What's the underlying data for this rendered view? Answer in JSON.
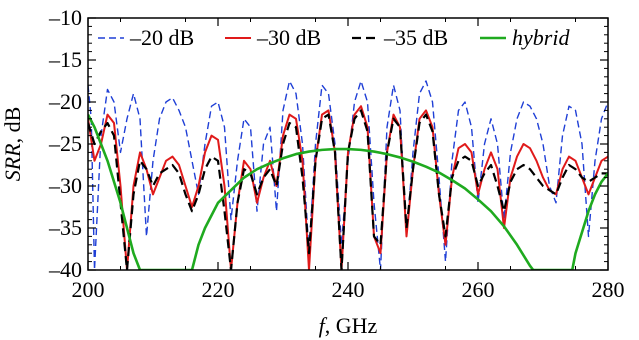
{
  "chart_data": {
    "type": "line",
    "title": "",
    "xlabel": {
      "var": "f",
      "unit": ", GHz"
    },
    "ylabel": {
      "var": "SRR",
      "unit": ", dB"
    },
    "xlim": [
      200,
      280
    ],
    "ylim": [
      -40,
      -10
    ],
    "x_ticks": [
      200,
      220,
      240,
      260,
      280
    ],
    "y_ticks": [
      -10,
      -15,
      -20,
      -25,
      -30,
      -35,
      -40
    ],
    "x_tick_labels": [
      "200",
      "220",
      "240",
      "260",
      "280"
    ],
    "y_tick_labels": [
      "–10",
      "–15",
      "–20",
      "–25",
      "–30",
      "–35",
      "–40"
    ],
    "legend_position": "top",
    "series": [
      {
        "name": "–20 dB",
        "color": "#1f3fd6",
        "style": "dashed",
        "italic": false,
        "points": [
          [
            200,
            -18
          ],
          [
            200.5,
            -22
          ],
          [
            201,
            -40
          ],
          [
            201.5,
            -32
          ],
          [
            202,
            -24
          ],
          [
            203,
            -18.5
          ],
          [
            204,
            -20
          ],
          [
            205,
            -26
          ],
          [
            206,
            -22
          ],
          [
            207,
            -19
          ],
          [
            208,
            -22
          ],
          [
            209,
            -36
          ],
          [
            210,
            -27
          ],
          [
            211,
            -22
          ],
          [
            212,
            -20
          ],
          [
            213,
            -19.5
          ],
          [
            214,
            -21
          ],
          [
            215,
            -23
          ],
          [
            216,
            -27
          ],
          [
            217,
            -31
          ],
          [
            218,
            -25
          ],
          [
            219,
            -20.5
          ],
          [
            220,
            -20
          ],
          [
            221,
            -23
          ],
          [
            222,
            -34
          ],
          [
            223,
            -27
          ],
          [
            224,
            -22
          ],
          [
            225,
            -23
          ],
          [
            226,
            -33
          ],
          [
            227,
            -25
          ],
          [
            228,
            -23
          ],
          [
            229,
            -33
          ],
          [
            230,
            -21
          ],
          [
            231,
            -17.5
          ],
          [
            232,
            -19
          ],
          [
            233,
            -25
          ],
          [
            234,
            -38
          ],
          [
            235,
            -25
          ],
          [
            236,
            -18
          ],
          [
            237,
            -19
          ],
          [
            238,
            -25
          ],
          [
            239,
            -37
          ],
          [
            240,
            -27
          ],
          [
            241,
            -20
          ],
          [
            242,
            -17.5
          ],
          [
            243,
            -20
          ],
          [
            244,
            -32
          ],
          [
            245,
            -40
          ],
          [
            246,
            -23
          ],
          [
            247,
            -18
          ],
          [
            248,
            -21
          ],
          [
            249,
            -36
          ],
          [
            250,
            -26
          ],
          [
            251,
            -19
          ],
          [
            252,
            -17.5
          ],
          [
            253,
            -20
          ],
          [
            254,
            -29
          ],
          [
            255,
            -39
          ],
          [
            256,
            -27
          ],
          [
            257,
            -21
          ],
          [
            258,
            -20
          ],
          [
            259,
            -23
          ],
          [
            260,
            -32
          ],
          [
            261,
            -25
          ],
          [
            262,
            -22
          ],
          [
            263,
            -25
          ],
          [
            264,
            -34
          ],
          [
            265,
            -26
          ],
          [
            266,
            -22
          ],
          [
            267,
            -20
          ],
          [
            268,
            -20.5
          ],
          [
            269,
            -22
          ],
          [
            270,
            -25
          ],
          [
            271,
            -30
          ],
          [
            272,
            -32
          ],
          [
            273,
            -24
          ],
          [
            274,
            -20.5
          ],
          [
            275,
            -21
          ],
          [
            276,
            -25
          ],
          [
            277,
            -36
          ],
          [
            278,
            -27
          ],
          [
            279,
            -22
          ],
          [
            280,
            -20
          ]
        ]
      },
      {
        "name": "–30 dB",
        "color": "#e01a1a",
        "style": "solid",
        "italic": false,
        "points": [
          [
            200,
            -22
          ],
          [
            201,
            -27
          ],
          [
            202,
            -25
          ],
          [
            203,
            -21.5
          ],
          [
            204,
            -22.5
          ],
          [
            205,
            -30
          ],
          [
            206,
            -40
          ],
          [
            207,
            -30
          ],
          [
            208,
            -26
          ],
          [
            209,
            -28
          ],
          [
            210,
            -31
          ],
          [
            211,
            -29
          ],
          [
            212,
            -27
          ],
          [
            213,
            -26.5
          ],
          [
            214,
            -27.5
          ],
          [
            215,
            -30
          ],
          [
            216,
            -32.5
          ],
          [
            217,
            -30
          ],
          [
            218,
            -26
          ],
          [
            219,
            -24
          ],
          [
            220,
            -24.5
          ],
          [
            221,
            -30
          ],
          [
            222,
            -40
          ],
          [
            223,
            -32
          ],
          [
            224,
            -27
          ],
          [
            225,
            -28
          ],
          [
            226,
            -32
          ],
          [
            227,
            -29
          ],
          [
            228,
            -27
          ],
          [
            229,
            -30
          ],
          [
            230,
            -24
          ],
          [
            231,
            -21.5
          ],
          [
            232,
            -22
          ],
          [
            233,
            -27
          ],
          [
            234,
            -40
          ],
          [
            235,
            -27
          ],
          [
            236,
            -21.5
          ],
          [
            237,
            -21
          ],
          [
            238,
            -26
          ],
          [
            239,
            -40
          ],
          [
            240,
            -26
          ],
          [
            241,
            -21.5
          ],
          [
            242,
            -20.5
          ],
          [
            243,
            -23
          ],
          [
            244,
            -36
          ],
          [
            245,
            -38
          ],
          [
            246,
            -26
          ],
          [
            247,
            -21.5
          ],
          [
            248,
            -23
          ],
          [
            249,
            -36
          ],
          [
            250,
            -28
          ],
          [
            251,
            -22
          ],
          [
            252,
            -21
          ],
          [
            253,
            -23
          ],
          [
            254,
            -31
          ],
          [
            255,
            -37
          ],
          [
            256,
            -29
          ],
          [
            257,
            -25.5
          ],
          [
            258,
            -25
          ],
          [
            259,
            -26
          ],
          [
            260,
            -31
          ],
          [
            261,
            -28
          ],
          [
            262,
            -26
          ],
          [
            263,
            -28
          ],
          [
            264,
            -35
          ],
          [
            265,
            -29
          ],
          [
            266,
            -26.5
          ],
          [
            267,
            -25
          ],
          [
            268,
            -25.5
          ],
          [
            269,
            -27
          ],
          [
            270,
            -29
          ],
          [
            271,
            -30.5
          ],
          [
            272,
            -31
          ],
          [
            273,
            -28
          ],
          [
            274,
            -26.5
          ],
          [
            275,
            -27
          ],
          [
            276,
            -29
          ],
          [
            277,
            -31
          ],
          [
            278,
            -29
          ],
          [
            279,
            -27
          ],
          [
            280,
            -26.5
          ]
        ]
      },
      {
        "name": "–35 dB",
        "color": "#000000",
        "style": "dashed",
        "italic": false,
        "points": [
          [
            200,
            -22.5
          ],
          [
            201,
            -25
          ],
          [
            202,
            -23.5
          ],
          [
            203,
            -22.5
          ],
          [
            204,
            -24
          ],
          [
            205,
            -32
          ],
          [
            206,
            -40
          ],
          [
            207,
            -31
          ],
          [
            208,
            -27
          ],
          [
            209,
            -28
          ],
          [
            210,
            -30
          ],
          [
            211,
            -28.5
          ],
          [
            212,
            -28
          ],
          [
            213,
            -27.5
          ],
          [
            214,
            -28.5
          ],
          [
            215,
            -31
          ],
          [
            216,
            -33
          ],
          [
            217,
            -31
          ],
          [
            218,
            -28
          ],
          [
            219,
            -26.5
          ],
          [
            220,
            -27
          ],
          [
            221,
            -33
          ],
          [
            222,
            -40
          ],
          [
            223,
            -32
          ],
          [
            224,
            -28
          ],
          [
            225,
            -28.5
          ],
          [
            226,
            -31
          ],
          [
            227,
            -29
          ],
          [
            228,
            -28
          ],
          [
            229,
            -30
          ],
          [
            230,
            -25
          ],
          [
            231,
            -22.5
          ],
          [
            232,
            -23
          ],
          [
            233,
            -29
          ],
          [
            234,
            -38
          ],
          [
            235,
            -27
          ],
          [
            236,
            -22
          ],
          [
            237,
            -21.5
          ],
          [
            238,
            -26
          ],
          [
            239,
            -40
          ],
          [
            240,
            -26
          ],
          [
            241,
            -22
          ],
          [
            242,
            -21
          ],
          [
            243,
            -23.5
          ],
          [
            244,
            -36
          ],
          [
            245,
            -37
          ],
          [
            246,
            -26
          ],
          [
            247,
            -22
          ],
          [
            248,
            -23
          ],
          [
            249,
            -35
          ],
          [
            250,
            -28
          ],
          [
            251,
            -22.5
          ],
          [
            252,
            -21.5
          ],
          [
            253,
            -23.5
          ],
          [
            254,
            -31
          ],
          [
            255,
            -36
          ],
          [
            256,
            -29
          ],
          [
            257,
            -27
          ],
          [
            258,
            -26.5
          ],
          [
            259,
            -27
          ],
          [
            260,
            -30
          ],
          [
            261,
            -28.5
          ],
          [
            262,
            -27.5
          ],
          [
            263,
            -30
          ],
          [
            264,
            -33
          ],
          [
            265,
            -29.5
          ],
          [
            266,
            -28
          ],
          [
            267,
            -27.5
          ],
          [
            268,
            -28
          ],
          [
            269,
            -29
          ],
          [
            270,
            -30
          ],
          [
            271,
            -30.5
          ],
          [
            272,
            -31
          ],
          [
            273,
            -29
          ],
          [
            274,
            -27.5
          ],
          [
            275,
            -28
          ],
          [
            276,
            -29
          ],
          [
            277,
            -29.5
          ],
          [
            278,
            -29
          ],
          [
            279,
            -28.5
          ],
          [
            280,
            -28.5
          ]
        ]
      },
      {
        "name": "hybrid",
        "color": "#1faa1f",
        "style": "solid",
        "italic": true,
        "points": [
          [
            200,
            -21.5
          ],
          [
            201,
            -23
          ],
          [
            202,
            -25
          ],
          [
            203,
            -27
          ],
          [
            204,
            -29.5
          ],
          [
            205,
            -32
          ],
          [
            206,
            -35
          ],
          [
            207,
            -38
          ],
          [
            208,
            -40
          ],
          [
            216,
            -40
          ],
          [
            217,
            -37
          ],
          [
            218,
            -35
          ],
          [
            219,
            -33.5
          ],
          [
            220,
            -32
          ],
          [
            222,
            -30.5
          ],
          [
            224,
            -29
          ],
          [
            226,
            -28
          ],
          [
            228,
            -27.3
          ],
          [
            230,
            -26.7
          ],
          [
            232,
            -26.2
          ],
          [
            234,
            -25.9
          ],
          [
            236,
            -25.7
          ],
          [
            238,
            -25.6
          ],
          [
            240,
            -25.6
          ],
          [
            242,
            -25.7
          ],
          [
            244,
            -25.9
          ],
          [
            246,
            -26.2
          ],
          [
            248,
            -26.6
          ],
          [
            250,
            -27.1
          ],
          [
            252,
            -27.7
          ],
          [
            254,
            -28.4
          ],
          [
            256,
            -29.3
          ],
          [
            258,
            -30.3
          ],
          [
            260,
            -31.6
          ],
          [
            262,
            -33
          ],
          [
            264,
            -34.8
          ],
          [
            266,
            -37
          ],
          [
            268,
            -39.5
          ],
          [
            268.5,
            -40
          ],
          [
            274.5,
            -40
          ],
          [
            275,
            -38
          ],
          [
            276,
            -35.5
          ],
          [
            277,
            -33
          ],
          [
            278,
            -31
          ],
          [
            279,
            -29.5
          ],
          [
            280,
            -28.5
          ]
        ]
      }
    ]
  }
}
